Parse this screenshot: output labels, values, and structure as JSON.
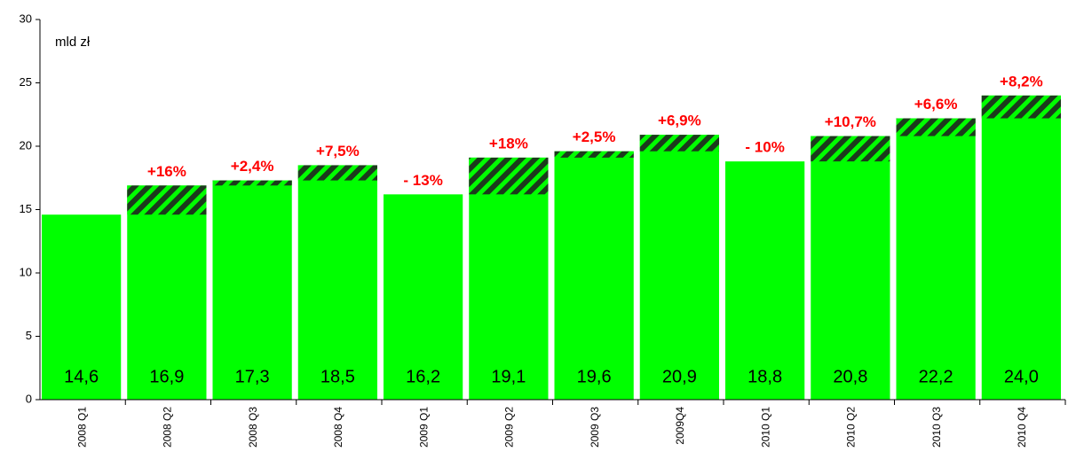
{
  "chart_data": {
    "type": "bar",
    "unit_label": "mld zł",
    "categories": [
      "2008 Q1",
      "2008 Q2",
      "2008 Q3",
      "2008 Q4",
      "2009 Q1",
      "2009 Q2",
      "2009 Q3",
      "2009Q4",
      "2010 Q1",
      "2010 Q2",
      "2010 Q3",
      "2010 Q4"
    ],
    "values": [
      14.6,
      16.9,
      17.3,
      18.5,
      16.2,
      19.1,
      19.6,
      20.9,
      18.8,
      20.8,
      22.2,
      24.0
    ],
    "value_labels": [
      "14,6",
      "16,9",
      "17,3",
      "18,5",
      "16,2",
      "19,1",
      "19,6",
      "20,9",
      "18,8",
      "20,8",
      "22,2",
      "24,0"
    ],
    "change_labels": [
      null,
      "+16%",
      "+2,4%",
      "+7,5%",
      "- 13%",
      "+18%",
      "+2,5%",
      "+6,9%",
      "- 10%",
      "+10,7%",
      "+6,6%",
      "+8,2%"
    ],
    "color": "#00ff00",
    "hatch_color": "#1c3a1c",
    "change_color": "#ff0000",
    "ylim": [
      0,
      30
    ],
    "yticks": [
      0,
      5,
      10,
      15,
      20,
      25,
      30
    ],
    "grid": false
  }
}
